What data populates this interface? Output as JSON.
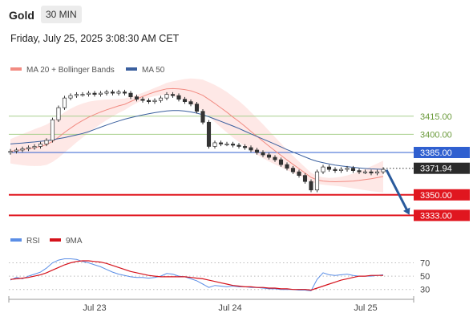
{
  "header": {
    "title": "Gold",
    "timeframe": "30 MIN"
  },
  "timestamp": "Friday, July 25, 2025 3:08:30 AM CET",
  "colors": {
    "ma20": "#f28b82",
    "band": "#fde0dd",
    "ma50": "#3a5f9e",
    "candle": "#333333",
    "res": "#a8d08d",
    "pivot": "#3060d0",
    "support": "#e0161f",
    "rsi": "#5b8ee6",
    "rsi_ma": "#d5121b",
    "arrow": "#2a5a9c"
  },
  "chart_data": [
    {
      "type": "candlestick",
      "legend": [
        {
          "label": "MA 20 + Bollinger Bands",
          "color": "#f28b82"
        },
        {
          "label": "MA 50",
          "color": "#3a5f9e"
        }
      ],
      "x_ticks": [
        "Jul 23",
        "Jul 24",
        "Jul 25"
      ],
      "ylim": [
        3322,
        3448
      ],
      "current_price": "3371.94",
      "levels": [
        {
          "label": "3415.00",
          "value": 3415,
          "kind": "resistance"
        },
        {
          "label": "3400.00",
          "value": 3400,
          "kind": "resistance"
        },
        {
          "label": "3385.00",
          "value": 3385,
          "kind": "pivot"
        },
        {
          "label": "3350.00",
          "value": 3350,
          "kind": "support"
        },
        {
          "label": "3333.00",
          "value": 3333,
          "kind": "support"
        }
      ],
      "close": [
        3386,
        3387,
        3388,
        3389,
        3390,
        3392,
        3395,
        3412,
        3422,
        3430,
        3432,
        3433,
        3433,
        3434,
        3433,
        3434,
        3435,
        3434,
        3435,
        3434,
        3431,
        3429,
        3428,
        3427,
        3428,
        3430,
        3433,
        3432,
        3429,
        3427,
        3425,
        3419,
        3410,
        3390,
        3393,
        3392,
        3392,
        3391,
        3390,
        3389,
        3387,
        3385,
        3383,
        3381,
        3379,
        3375,
        3372,
        3369,
        3366,
        3361,
        3354,
        3369,
        3373,
        3371,
        3370,
        3371,
        3372,
        3370,
        3369,
        3369,
        3368,
        3369,
        3371
      ],
      "ma20": [
        3386,
        3386.6,
        3387.3,
        3388.1,
        3389,
        3390,
        3391.4,
        3394.1,
        3397.6,
        3401.6,
        3405.1,
        3408.5,
        3411.4,
        3414.1,
        3416.4,
        3418.4,
        3420.3,
        3421.9,
        3423.5,
        3424.8,
        3427.1,
        3429.2,
        3431.3,
        3433.3,
        3435,
        3436.4,
        3437.6,
        3437.8,
        3437.5,
        3437,
        3436,
        3434.3,
        3432.2,
        3428.9,
        3425.5,
        3421.9,
        3418.3,
        3414.3,
        3410.6,
        3406.6,
        3402.4,
        3398.3,
        3394.3,
        3390.3,
        3386.4,
        3382.6,
        3378.8,
        3375.2,
        3371.7,
        3368.1,
        3364.4,
        3362.4,
        3361.4,
        3360.9,
        3360.8,
        3360.9,
        3361.1,
        3361.4,
        3361.9,
        3362.6,
        3363.3,
        3364.2,
        3365.2
      ],
      "ma50": [
        3392,
        3392.4,
        3392.8,
        3393.3,
        3393.7,
        3394.2,
        3394.8,
        3395.5,
        3396.4,
        3397.3,
        3398.4,
        3399.5,
        3400.7,
        3402.2,
        3404,
        3405.9,
        3407.7,
        3409.4,
        3411,
        3412.5,
        3413.8,
        3414.9,
        3416,
        3417,
        3417.9,
        3418.7,
        3419.3,
        3419.6,
        3419.6,
        3419.2,
        3418.5,
        3417.5,
        3416.2,
        3414.5,
        3412.6,
        3410.7,
        3408.8,
        3406.9,
        3404.8,
        3402.6,
        3400.4,
        3398.2,
        3396.1,
        3394,
        3391.8,
        3389.6,
        3387.4,
        3385.3,
        3383.3,
        3381.3,
        3379.3,
        3377.7,
        3376.6,
        3375.5,
        3374.6,
        3373.9,
        3373.3,
        3372.7,
        3372.2,
        3371.8,
        3371.5,
        3371.3,
        3371.1
      ]
    },
    {
      "type": "line",
      "legend": [
        {
          "label": "RSI",
          "color": "#5b8ee6"
        },
        {
          "label": "9MA",
          "color": "#d5121b"
        }
      ],
      "ylim": [
        20,
        85
      ],
      "levels": [
        {
          "label": "70",
          "value": 70
        },
        {
          "label": "50",
          "value": 50
        },
        {
          "label": "30",
          "value": 30
        }
      ],
      "series": [
        {
          "name": "RSI",
          "values": [
            44,
            48,
            46,
            50,
            53,
            56,
            62,
            70,
            74,
            76,
            76,
            75,
            72,
            70,
            67,
            64,
            60,
            56,
            53,
            51,
            49,
            48,
            48,
            47,
            48,
            50,
            54,
            53,
            50,
            49,
            46,
            43,
            38,
            33,
            36,
            35,
            34,
            35,
            34,
            34,
            33,
            33,
            32,
            31,
            31,
            30,
            30,
            30,
            29,
            29,
            28,
            45,
            55,
            52,
            51,
            52,
            53,
            51,
            50,
            50,
            50,
            51,
            52
          ]
        },
        {
          "name": "9MA",
          "values": [
            45,
            46,
            47,
            48,
            50,
            52,
            55,
            59,
            63,
            67,
            70,
            72,
            73,
            73,
            72,
            71,
            69,
            66,
            63,
            60,
            57,
            55,
            53,
            51,
            50,
            49,
            49,
            49,
            49,
            49,
            48,
            47,
            46,
            44,
            42,
            40,
            38,
            36,
            35,
            34,
            34,
            33,
            33,
            32,
            32,
            31,
            31,
            30,
            30,
            30,
            29,
            32,
            35,
            38,
            41,
            44,
            46,
            48,
            50,
            50,
            51,
            51,
            51
          ]
        }
      ]
    }
  ]
}
